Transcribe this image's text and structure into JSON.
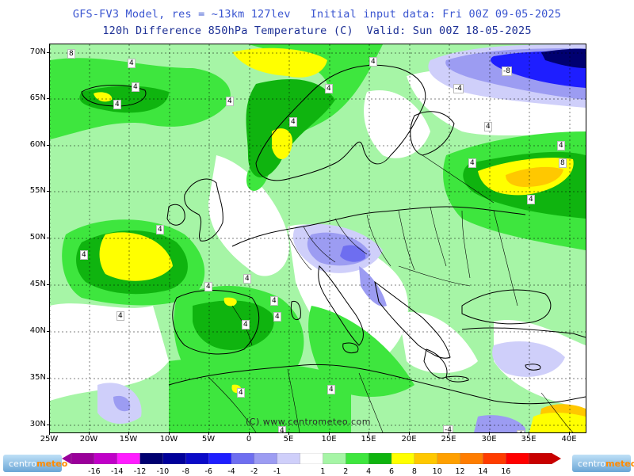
{
  "header": {
    "line1": "GFS-FV3 Model, res = ~13km 127lev   Initial input data: Fri 00Z 09-05-2025",
    "line2": "120h Difference 850hPa Temperature (C)  Valid: Sun 00Z 18-05-2025"
  },
  "map": {
    "lat_labels": [
      "70N",
      "65N",
      "60N",
      "55N",
      "50N",
      "45N",
      "40N",
      "35N",
      "30N"
    ],
    "lon_labels": [
      "25W",
      "20W",
      "15W",
      "10W",
      "5W",
      "0",
      "5E",
      "10E",
      "15E",
      "20E",
      "25E",
      "30E",
      "35E",
      "40E"
    ],
    "copyright": "(C) www.centrometeo.com",
    "contour_labels": [
      "8",
      "4",
      "4",
      "4",
      "4",
      "4",
      "4",
      "-4",
      "-8",
      "4",
      "4",
      "4",
      "8",
      "4",
      "4",
      "4",
      "4",
      "4",
      "4",
      "4",
      "4",
      "4",
      "4",
      "4",
      "4",
      "-4",
      "4",
      "4"
    ]
  },
  "colorbar": {
    "colors": [
      "#9a009a",
      "#c000c8",
      "#ff1cff",
      "#000070",
      "#00009a",
      "#0a0ac8",
      "#1e1eff",
      "#6e6ef0",
      "#9c9cf2",
      "#cfcffa",
      "#ffffff",
      "#a6f5a6",
      "#3ee63e",
      "#0fb40f",
      "#ffff00",
      "#ffc800",
      "#ffa000",
      "#ff7d00",
      "#ff3c00",
      "#ff0000",
      "#c80000"
    ],
    "tick_labels": [
      "-16",
      "-14",
      "-12",
      "-10",
      "-8",
      "-6",
      "-4",
      "-2",
      "-1",
      "1",
      "2",
      "4",
      "6",
      "8",
      "10",
      "12",
      "14",
      "16"
    ]
  },
  "logo": {
    "prefix": "centro",
    "suffix": "meteo"
  }
}
